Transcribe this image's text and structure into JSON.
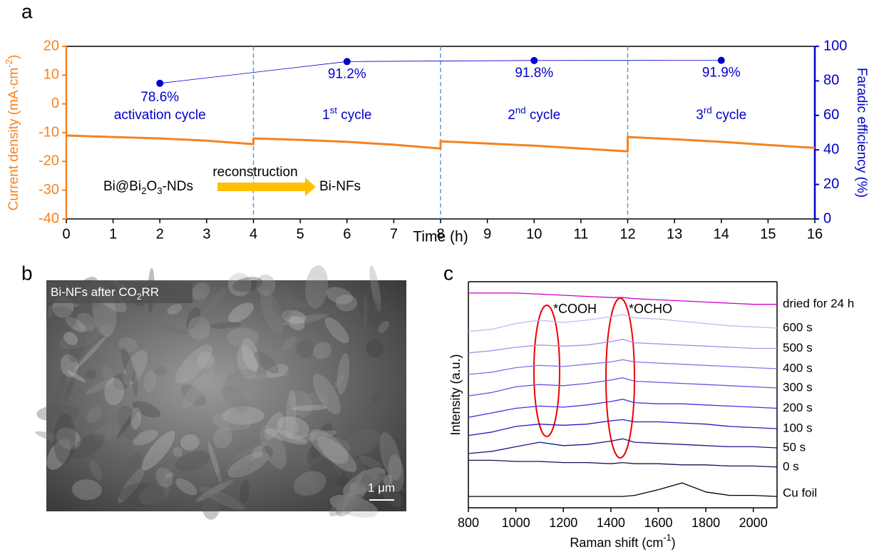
{
  "chart_data": [
    {
      "type": "line",
      "label": "a",
      "xlabel": "Time (h)",
      "ylabel": [
        {
          "text": "Current density (mA·cm"
        },
        {
          "text": "-2",
          "shift": "sup"
        },
        {
          "text": ")"
        }
      ],
      "y2label": "Faradic efficiency (%)",
      "xlim": [
        0,
        16
      ],
      "xticks": [
        0,
        1,
        2,
        3,
        4,
        5,
        6,
        7,
        8,
        9,
        10,
        11,
        12,
        13,
        14,
        15,
        16
      ],
      "ylim": [
        -40,
        20
      ],
      "yticks": [
        -40,
        -30,
        -20,
        -10,
        0,
        10,
        20
      ],
      "y2lim": [
        0,
        100
      ],
      "y2ticks": [
        0,
        20,
        40,
        60,
        80,
        100
      ],
      "cycle_boundaries": [
        4,
        8,
        12
      ],
      "cycle_labels": [
        [
          {
            "text": "activation cycle"
          }
        ],
        [
          {
            "text": "1"
          },
          {
            "text": "st",
            "shift": "sup"
          },
          {
            "text": " cycle"
          }
        ],
        [
          {
            "text": "2"
          },
          {
            "text": "nd",
            "shift": "sup"
          },
          {
            "text": " cycle"
          }
        ],
        [
          {
            "text": "3"
          },
          {
            "text": "rd",
            "shift": "sup"
          },
          {
            "text": " cycle"
          }
        ]
      ],
      "scheme": {
        "from": [
          {
            "text": "Bi@Bi"
          },
          {
            "text": "2",
            "shift": "sub"
          },
          {
            "text": "O"
          },
          {
            "text": "3",
            "shift": "sub"
          },
          {
            "text": "-NDs"
          }
        ],
        "arrow_label": "reconstruction",
        "to": "Bi-NFs",
        "arrow_color": "#ffc000"
      },
      "series": [
        {
          "color": "#f5821f",
          "x": [
            0,
            1,
            2,
            3,
            4,
            4,
            5,
            6,
            7,
            8,
            8,
            9,
            10,
            11,
            12,
            12,
            13,
            14,
            15,
            16
          ],
          "values": [
            -11,
            -11.5,
            -12,
            -12.8,
            -14,
            -12,
            -12.5,
            -13.2,
            -14.2,
            -15.5,
            -13,
            -13.8,
            -14.5,
            -15.5,
            -16.5,
            -11.5,
            -12.3,
            -13.2,
            -14.3,
            -15.3
          ]
        },
        {
          "color": "#0000cc",
          "axis": "y2",
          "x": [
            2,
            6,
            10,
            14
          ],
          "values": [
            78.6,
            91.2,
            91.8,
            91.9
          ],
          "value_labels": [
            "78.6%",
            "91.2%",
            "91.8%",
            "91.9%"
          ]
        }
      ]
    },
    {
      "type": "line",
      "label": "c",
      "xlabel": [
        {
          "text": "Raman shift (cm"
        },
        {
          "text": "-1",
          "shift": "sup"
        },
        {
          "text": ")"
        }
      ],
      "ylabel": "Intensity (a.u.)",
      "xlim": [
        800,
        2100
      ],
      "xticks": [
        800,
        1000,
        1200,
        1400,
        1600,
        1800,
        2000
      ],
      "ylim": [
        0,
        10
      ],
      "annotations": [
        "*COOH",
        "*OCHO"
      ],
      "x": [
        800,
        900,
        1000,
        1100,
        1200,
        1300,
        1400,
        1450,
        1500,
        1600,
        1700,
        1800,
        1900,
        2000,
        2100
      ],
      "series": [
        {
          "name": "dried for 24 h",
          "color": "#cc00cc",
          "values": [
            9.5,
            9.5,
            9.5,
            9.45,
            9.4,
            9.35,
            9.3,
            9.3,
            9.25,
            9.2,
            9.15,
            9.1,
            9.05,
            9.0,
            9.0
          ]
        },
        {
          "name": "600 s",
          "color": "#c8b8f0",
          "values": [
            7.8,
            7.9,
            8.15,
            8.3,
            8.2,
            8.3,
            8.45,
            8.55,
            8.4,
            8.35,
            8.25,
            8.15,
            8.05,
            8.0,
            7.95
          ]
        },
        {
          "name": "500 s",
          "color": "#a890ee",
          "values": [
            6.85,
            6.95,
            7.1,
            7.2,
            7.15,
            7.2,
            7.35,
            7.45,
            7.3,
            7.25,
            7.2,
            7.15,
            7.1,
            7.05,
            7.05
          ]
        },
        {
          "name": "400 s",
          "color": "#8c70e8",
          "values": [
            5.9,
            6.0,
            6.2,
            6.3,
            6.25,
            6.35,
            6.45,
            6.55,
            6.45,
            6.4,
            6.35,
            6.3,
            6.25,
            6.2,
            6.15
          ]
        },
        {
          "name": "300 s",
          "color": "#7050e0",
          "values": [
            4.95,
            5.1,
            5.35,
            5.45,
            5.4,
            5.5,
            5.65,
            5.75,
            5.6,
            5.55,
            5.5,
            5.45,
            5.4,
            5.35,
            5.3
          ]
        },
        {
          "name": "200 s",
          "color": "#4a2ee0",
          "values": [
            4.0,
            4.2,
            4.4,
            4.5,
            4.45,
            4.55,
            4.7,
            4.8,
            4.65,
            4.6,
            4.6,
            4.55,
            4.5,
            4.45,
            4.4
          ]
        },
        {
          "name": "100 s",
          "color": "#2a1ab8",
          "values": [
            3.2,
            3.35,
            3.6,
            3.7,
            3.65,
            3.7,
            3.85,
            3.9,
            3.8,
            3.8,
            3.75,
            3.7,
            3.6,
            3.55,
            3.5
          ]
        },
        {
          "name": "50 s",
          "color": "#20148a",
          "values": [
            2.4,
            2.5,
            2.7,
            2.9,
            2.75,
            2.8,
            2.95,
            3.05,
            2.9,
            2.85,
            2.8,
            2.75,
            2.7,
            2.7,
            2.65
          ]
        },
        {
          "name": "0 s",
          "color": "#1a1050",
          "values": [
            2.1,
            2.1,
            2.05,
            2.05,
            2.0,
            2.0,
            1.95,
            2.0,
            1.95,
            1.95,
            1.9,
            1.9,
            1.85,
            1.85,
            1.8
          ]
        },
        {
          "name": "Cu foil",
          "color": "#000000",
          "values": [
            0.5,
            0.5,
            0.5,
            0.5,
            0.5,
            0.5,
            0.5,
            0.5,
            0.55,
            0.8,
            1.1,
            0.7,
            0.55,
            0.55,
            0.5
          ]
        }
      ]
    }
  ],
  "image_panel": {
    "label": "b",
    "caption": [
      {
        "text": "Bi-NFs after CO"
      },
      {
        "text": "2",
        "shift": "sub"
      },
      {
        "text": "RR"
      }
    ],
    "scale_bar": "1 μm"
  }
}
